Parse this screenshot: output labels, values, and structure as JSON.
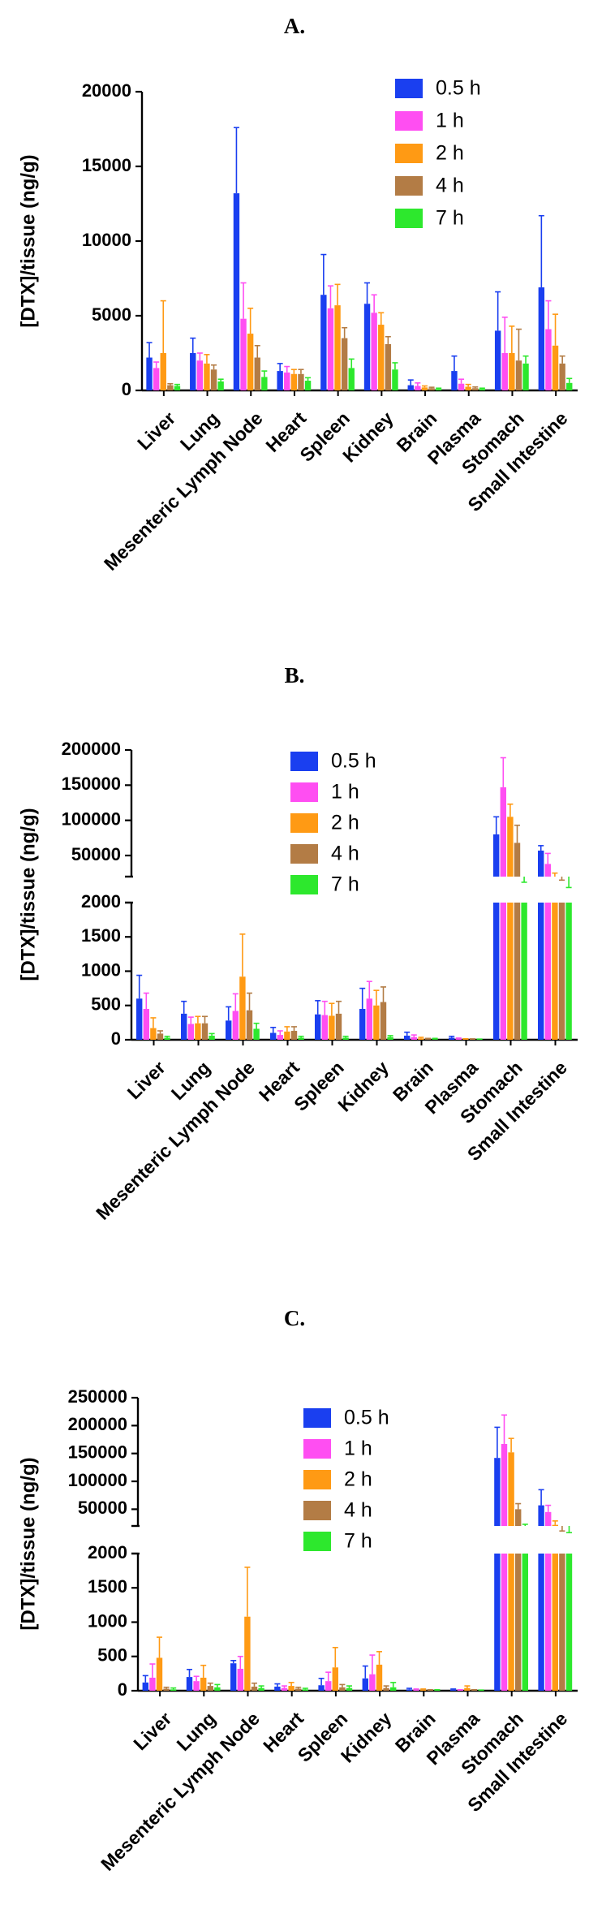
{
  "chart_data": [
    {
      "type": "bar",
      "panel": "A.",
      "title": "",
      "ylabel": "[DTX]/tissue (ng/g)",
      "xlabel": "",
      "ylim": [
        0,
        20000
      ],
      "yticks": [
        0,
        5000,
        10000,
        15000,
        20000
      ],
      "yticklabels": [
        "0",
        "5000",
        "10000",
        "15000",
        "20000"
      ],
      "categories": [
        "Liver",
        "Lung",
        "Mesenteric Lymph Node",
        "Heart",
        "Spleen",
        "Kidney",
        "Brain",
        "Plasma",
        "Stomach",
        "Small Intestine"
      ],
      "legend_position": "top-right",
      "series": [
        {
          "name": "0.5 h",
          "color": "#1a3ff0",
          "values": [
            2200,
            2500,
            13200,
            1300,
            6400,
            5800,
            350,
            1300,
            4000,
            6900
          ],
          "errors": [
            1000,
            1000,
            4400,
            500,
            2700,
            1400,
            350,
            1000,
            2600,
            4800
          ]
        },
        {
          "name": "1 h",
          "color": "#ff4ef2",
          "values": [
            1500,
            2000,
            4800,
            1200,
            5500,
            5200,
            300,
            450,
            2500,
            4100
          ],
          "errors": [
            400,
            500,
            2400,
            400,
            1500,
            1200,
            200,
            300,
            2400,
            1900
          ]
        },
        {
          "name": "2 h",
          "color": "#ff9a14",
          "values": [
            2500,
            1800,
            3800,
            1100,
            5700,
            4400,
            200,
            250,
            2500,
            3000
          ],
          "errors": [
            3500,
            600,
            1700,
            300,
            1400,
            800,
            100,
            150,
            1800,
            2100
          ]
        },
        {
          "name": "4 h",
          "color": "#b37c45",
          "values": [
            350,
            1400,
            2200,
            1100,
            3500,
            3100,
            150,
            150,
            2000,
            1800
          ],
          "errors": [
            100,
            300,
            800,
            300,
            700,
            500,
            60,
            80,
            2100,
            500
          ]
        },
        {
          "name": "7 h",
          "color": "#2de82d",
          "values": [
            300,
            600,
            900,
            650,
            1500,
            1400,
            100,
            100,
            1800,
            500
          ],
          "errors": [
            100,
            150,
            400,
            200,
            600,
            450,
            50,
            50,
            500,
            300
          ]
        }
      ]
    },
    {
      "type": "bar",
      "panel": "B.",
      "title": "",
      "ylabel": "[DTX]/tissue (ng/g)",
      "xlabel": "",
      "axis_break": true,
      "ylim_lower": [
        0,
        2000
      ],
      "ylim_upper": [
        20000,
        200000
      ],
      "yticks_lower": [
        0,
        500,
        1000,
        1500,
        2000
      ],
      "yticklabels_lower": [
        "0",
        "500",
        "1000",
        "1500",
        "2000"
      ],
      "yticks_upper": [
        50000,
        100000,
        150000,
        200000
      ],
      "yticklabels_upper": [
        "50000",
        "100000",
        "150000",
        "200000"
      ],
      "categories": [
        "Liver",
        "Lung",
        "Mesenteric Lymph Node",
        "Heart",
        "Spleen",
        "Kidney",
        "Brain",
        "Plasma",
        "Stomach",
        "Small Intestine"
      ],
      "legend_position": "top-center",
      "series": [
        {
          "name": "0.5 h",
          "color": "#1a3ff0",
          "values": [
            600,
            380,
            280,
            100,
            370,
            450,
            60,
            30,
            80000,
            57000
          ],
          "errors": [
            340,
            180,
            200,
            80,
            200,
            300,
            50,
            20,
            25000,
            7000
          ]
        },
        {
          "name": "1 h",
          "color": "#ff4ef2",
          "values": [
            450,
            230,
            420,
            70,
            360,
            600,
            40,
            15,
            147000,
            38000
          ],
          "errors": [
            230,
            100,
            250,
            60,
            200,
            250,
            30,
            10,
            42000,
            15000
          ]
        },
        {
          "name": "2 h",
          "color": "#ff9a14",
          "values": [
            170,
            240,
            920,
            120,
            350,
            500,
            20,
            10,
            105000,
            18000
          ],
          "errors": [
            150,
            100,
            620,
            70,
            180,
            220,
            15,
            5,
            18000,
            7000
          ]
        },
        {
          "name": "4 h",
          "color": "#b37c45",
          "values": [
            90,
            240,
            430,
            130,
            380,
            550,
            10,
            8,
            68000,
            10000
          ],
          "errors": [
            40,
            100,
            250,
            60,
            180,
            220,
            10,
            5,
            25000,
            5000
          ]
        },
        {
          "name": "7 h",
          "color": "#2de82d",
          "values": [
            30,
            60,
            160,
            30,
            30,
            40,
            10,
            5,
            8000,
            3000
          ],
          "errors": [
            20,
            30,
            80,
            20,
            20,
            20,
            10,
            5,
            4000,
            1500
          ]
        }
      ]
    },
    {
      "type": "bar",
      "panel": "C.",
      "title": "",
      "ylabel": "[DTX]/tissue (ng/g)",
      "xlabel": "",
      "axis_break": true,
      "ylim_lower": [
        0,
        2000
      ],
      "ylim_upper": [
        20000,
        250000
      ],
      "yticks_lower": [
        0,
        500,
        1000,
        1500,
        2000
      ],
      "yticklabels_lower": [
        "0",
        "500",
        "1000",
        "1500",
        "2000"
      ],
      "yticks_upper": [
        50000,
        100000,
        150000,
        200000,
        250000
      ],
      "yticklabels_upper": [
        "50000",
        "100000",
        "150000",
        "200000",
        "250000"
      ],
      "categories": [
        "Liver",
        "Lung",
        "Mesenteric Lymph Node",
        "Heart",
        "Spleen",
        "Kidney",
        "Brain",
        "Plasma",
        "Stomach",
        "Small Intestine"
      ],
      "legend_position": "top-center",
      "series": [
        {
          "name": "0.5 h",
          "color": "#1a3ff0",
          "values": [
            120,
            200,
            400,
            60,
            80,
            180,
            20,
            15,
            142000,
            57000
          ],
          "errors": [
            100,
            110,
            40,
            40,
            100,
            180,
            15,
            10,
            55000,
            28000
          ]
        },
        {
          "name": "1 h",
          "color": "#ff4ef2",
          "values": [
            190,
            140,
            320,
            40,
            140,
            240,
            15,
            10,
            167000,
            45000
          ],
          "errors": [
            200,
            70,
            180,
            30,
            130,
            280,
            10,
            5,
            52000,
            12000
          ]
        },
        {
          "name": "2 h",
          "color": "#ff9a14",
          "values": [
            480,
            190,
            1080,
            70,
            340,
            380,
            15,
            40,
            152000,
            22000
          ],
          "errors": [
            300,
            180,
            720,
            50,
            290,
            190,
            10,
            30,
            25000,
            7000
          ]
        },
        {
          "name": "4 h",
          "color": "#b37c45",
          "values": [
            30,
            70,
            60,
            30,
            50,
            40,
            10,
            10,
            50000,
            8000
          ],
          "errors": [
            20,
            40,
            50,
            20,
            40,
            30,
            5,
            5,
            10000,
            3000
          ]
        },
        {
          "name": "7 h",
          "color": "#2de82d",
          "values": [
            20,
            50,
            40,
            20,
            40,
            50,
            10,
            5,
            15000,
            6000
          ],
          "errors": [
            20,
            40,
            30,
            15,
            30,
            70,
            5,
            5,
            8000,
            2000
          ]
        }
      ]
    }
  ]
}
